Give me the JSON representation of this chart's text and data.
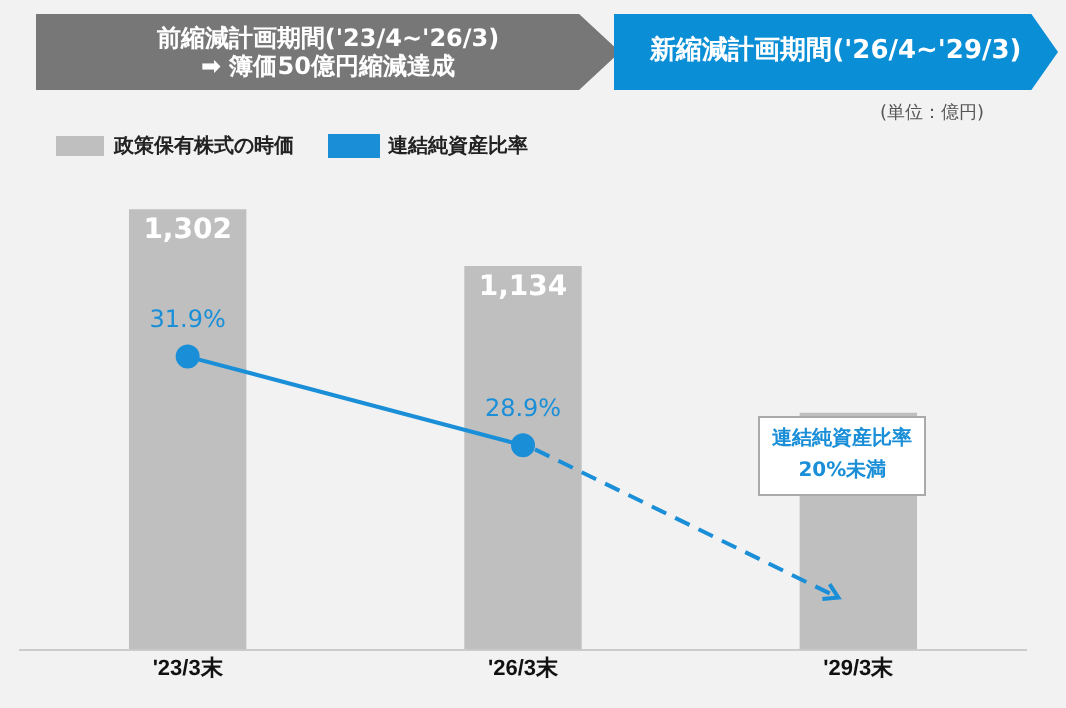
{
  "chart_data": {
    "type": "bar",
    "categories": [
      "'23/3末",
      "'26/3末",
      "'29/3末"
    ],
    "series": [
      {
        "name": "政策保有株式の時価",
        "color": "#bfbfbf",
        "values": [
          1302,
          1134,
          700
        ],
        "value_labels": [
          "1,302",
          "1,134",
          null
        ]
      },
      {
        "type": "line",
        "name": "連結純資産比率",
        "color": "#1a8fd8",
        "values": [
          31.9,
          28.9,
          null
        ],
        "value_labels": [
          "31.9%",
          "28.9%",
          null
        ],
        "axis": "y2",
        "marker": "circle",
        "line_style": "solid"
      }
    ],
    "tick_labels": "x",
    "grid": false,
    "legend": "top left",
    "annotations": [
      "前縮減計画期間('23/4~'26/3)\n➡ 簿価50億円縮減達成",
      "新縮減計画期間('26/4~'29/3)",
      "(単位：億円)",
      "連結純資産比率\n20%未満"
    ]
  }
}
